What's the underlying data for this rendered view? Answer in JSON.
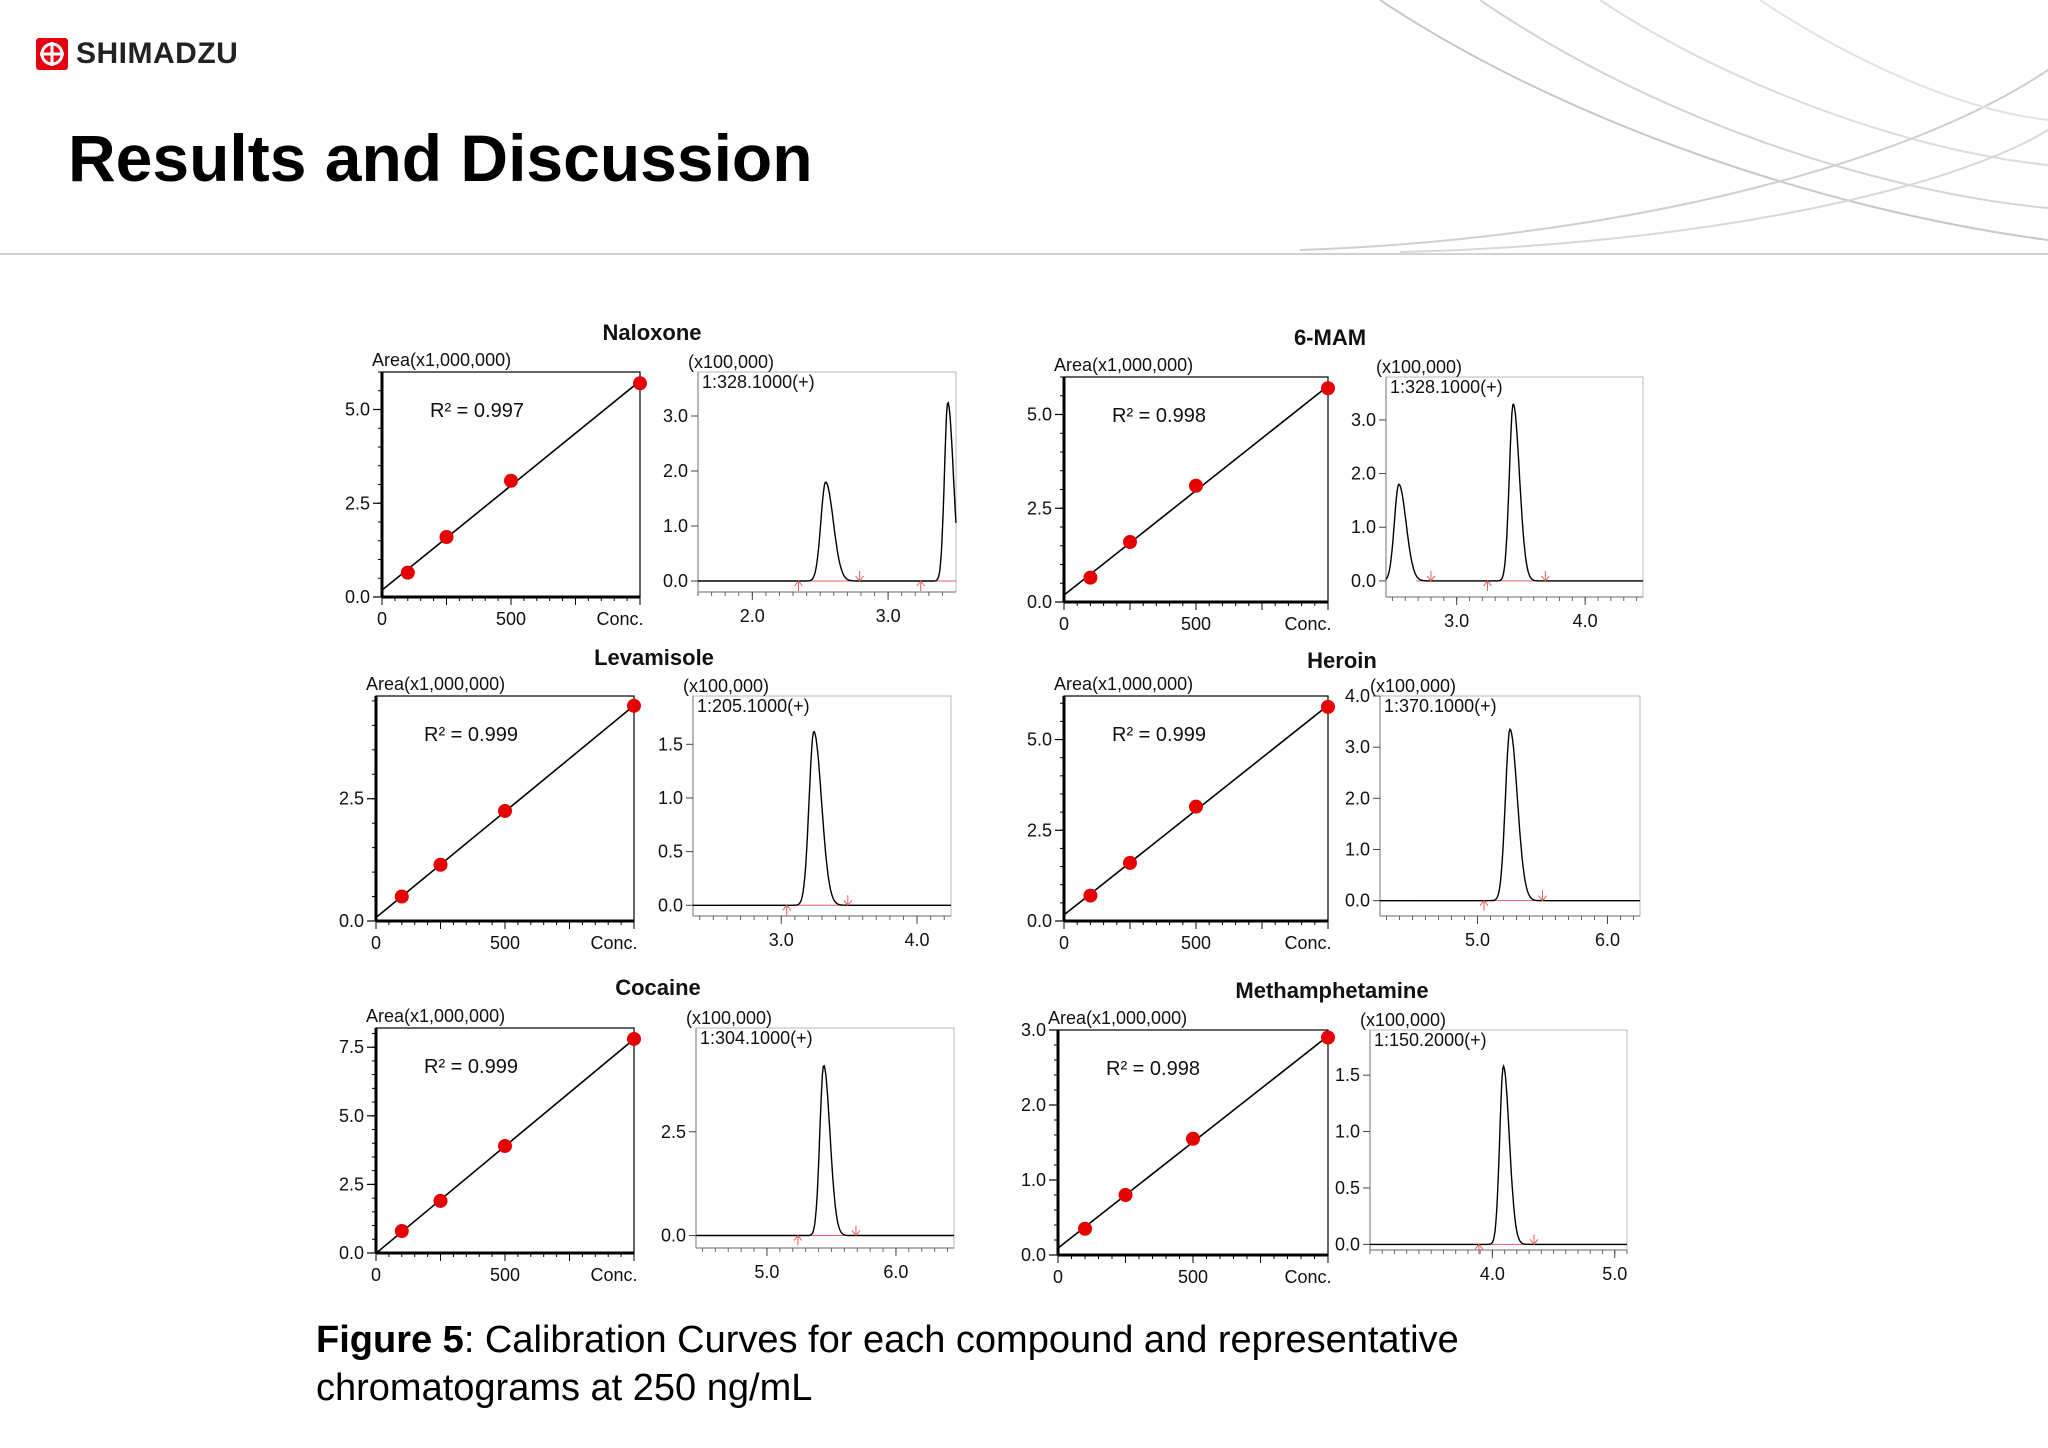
{
  "brand": {
    "name": "SHIMADZU"
  },
  "slide": {
    "title": "Results and Discussion",
    "caption_label": "Figure 5",
    "caption_text": ": Calibration Curves for each compound and representative chromatograms at 250 ng/mL"
  },
  "colors": {
    "points": "#e60000",
    "fit_line": "#000000",
    "baseline": "#e06060",
    "trace": "#000000"
  },
  "chart_data": [
    {
      "type": "scatter",
      "title": "Naloxone",
      "ylabel": "Area(x1,000,000)",
      "xlabel": "Conc.",
      "x_ticks": [
        "0",
        "500"
      ],
      "xlim": [
        0,
        1000
      ],
      "y_ticks": [
        "0.0",
        "2.5",
        "5.0"
      ],
      "ylim": [
        0,
        6.0
      ],
      "r2": "R² = 0.997",
      "points": {
        "x": [
          100,
          250,
          500,
          1000
        ],
        "y": [
          0.65,
          1.6,
          3.1,
          5.7
        ]
      }
    },
    {
      "type": "line",
      "title": "Naloxone chromatogram",
      "scale_label": "(x100,000)",
      "mz_label": "1:328.1000(+)",
      "y_ticks": [
        "0.0",
        "1.0",
        "2.0",
        "3.0"
      ],
      "ylim": [
        -0.2,
        3.8
      ],
      "x_ticks": [
        "2.0",
        "3.0"
      ],
      "xlim": [
        1.6,
        3.5
      ],
      "peaks": [
        {
          "rt": 2.54,
          "height": 1.8,
          "width": 0.035
        },
        {
          "rt": 3.44,
          "height": 3.25,
          "width": 0.025
        }
      ]
    },
    {
      "type": "scatter",
      "title": "6-MAM",
      "ylabel": "Area(x1,000,000)",
      "xlabel": "Conc.",
      "x_ticks": [
        "0",
        "500"
      ],
      "xlim": [
        0,
        1000
      ],
      "y_ticks": [
        "0.0",
        "2.5",
        "5.0"
      ],
      "ylim": [
        0,
        6.0
      ],
      "r2": "R² = 0.998",
      "points": {
        "x": [
          100,
          250,
          500,
          1000
        ],
        "y": [
          0.65,
          1.6,
          3.1,
          5.7
        ]
      }
    },
    {
      "type": "line",
      "title": "6-MAM chromatogram",
      "scale_label": "(x100,000)",
      "mz_label": "1:328.1000(+)",
      "y_ticks": [
        "0.0",
        "1.0",
        "2.0",
        "3.0"
      ],
      "ylim": [
        -0.3,
        3.8
      ],
      "x_ticks": [
        "3.0",
        "4.0"
      ],
      "xlim": [
        2.45,
        4.45
      ],
      "peaks": [
        {
          "rt": 2.55,
          "height": 1.8,
          "width": 0.035
        },
        {
          "rt": 3.44,
          "height": 3.3,
          "width": 0.03
        }
      ]
    },
    {
      "type": "scatter",
      "title": "Levamisole",
      "ylabel": "Area(x1,000,000)",
      "xlabel": "Conc.",
      "x_ticks": [
        "0",
        "500"
      ],
      "xlim": [
        0,
        1000
      ],
      "y_ticks": [
        "0.0",
        "2.5"
      ],
      "ylim": [
        0,
        4.6
      ],
      "r2": "R² = 0.999",
      "points": {
        "x": [
          100,
          250,
          500,
          1000
        ],
        "y": [
          0.5,
          1.15,
          2.25,
          4.4
        ]
      }
    },
    {
      "type": "line",
      "title": "Levamisole chromatogram",
      "scale_label": "(x100,000)",
      "mz_label": "1:205.1000(+)",
      "y_ticks": [
        "0.0",
        "0.5",
        "1.0",
        "1.5"
      ],
      "ylim": [
        -0.1,
        1.95
      ],
      "x_ticks": [
        "3.0",
        "4.0"
      ],
      "xlim": [
        2.35,
        4.25
      ],
      "peaks": [
        {
          "rt": 3.24,
          "height": 1.62,
          "width": 0.035
        }
      ]
    },
    {
      "type": "scatter",
      "title": "Heroin",
      "ylabel": "Area(x1,000,000)",
      "xlabel": "Conc.",
      "x_ticks": [
        "0",
        "500"
      ],
      "xlim": [
        0,
        1000
      ],
      "y_ticks": [
        "0.0",
        "2.5",
        "5.0"
      ],
      "ylim": [
        0,
        6.2
      ],
      "r2": "R² = 0.999",
      "points": {
        "x": [
          100,
          250,
          500,
          1000
        ],
        "y": [
          0.7,
          1.6,
          3.15,
          5.9
        ]
      }
    },
    {
      "type": "line",
      "title": "Heroin chromatogram",
      "scale_label": "(x100,000)",
      "mz_label": "1:370.1000(+)",
      "y_ticks": [
        "0.0",
        "1.0",
        "2.0",
        "3.0",
        "4.0"
      ],
      "ylim": [
        -0.3,
        4.0
      ],
      "x_ticks": [
        "5.0",
        "6.0"
      ],
      "xlim": [
        4.25,
        6.25
      ],
      "peaks": [
        {
          "rt": 5.25,
          "height": 3.35,
          "width": 0.035
        }
      ]
    },
    {
      "type": "scatter",
      "title": "Cocaine",
      "ylabel": "Area(x1,000,000)",
      "xlabel": "Conc.",
      "x_ticks": [
        "0",
        "500"
      ],
      "xlim": [
        0,
        1000
      ],
      "y_ticks": [
        "0.0",
        "2.5",
        "5.0",
        "7.5"
      ],
      "ylim": [
        0,
        8.2
      ],
      "r2": "R² = 0.999",
      "points": {
        "x": [
          100,
          250,
          500,
          1000
        ],
        "y": [
          0.8,
          1.9,
          3.9,
          7.8
        ]
      }
    },
    {
      "type": "line",
      "title": "Cocaine chromatogram",
      "scale_label": "(x100,000)",
      "mz_label": "1:304.1000(+)",
      "y_ticks": [
        "0.0",
        "2.5"
      ],
      "ylim": [
        -0.3,
        5.0
      ],
      "x_ticks": [
        "5.0",
        "6.0"
      ],
      "xlim": [
        4.45,
        6.45
      ],
      "peaks": [
        {
          "rt": 5.44,
          "height": 4.1,
          "width": 0.03
        }
      ]
    },
    {
      "type": "scatter",
      "title": "Methamphetamine",
      "ylabel": "Area(x1,000,000)",
      "xlabel": "Conc.",
      "x_ticks": [
        "0",
        "500"
      ],
      "xlim": [
        0,
        1000
      ],
      "y_ticks": [
        "0.0",
        "1.0",
        "2.0",
        "3.0"
      ],
      "ylim": [
        0,
        3.0
      ],
      "r2": "R² = 0.998",
      "points": {
        "x": [
          100,
          250,
          500,
          1000
        ],
        "y": [
          0.35,
          0.8,
          1.55,
          2.9
        ]
      }
    },
    {
      "type": "line",
      "title": "Methamphetamine chromatogram",
      "scale_label": "(x100,000)",
      "mz_label": "1:150.2000(+)",
      "y_ticks": [
        "0.0",
        "0.5",
        "1.0",
        "1.5"
      ],
      "ylim": [
        -0.05,
        1.9
      ],
      "x_ticks": [
        "4.0",
        "5.0"
      ],
      "xlim": [
        3.0,
        5.1
      ],
      "peaks": [
        {
          "rt": 4.09,
          "height": 1.58,
          "width": 0.03
        }
      ]
    }
  ]
}
